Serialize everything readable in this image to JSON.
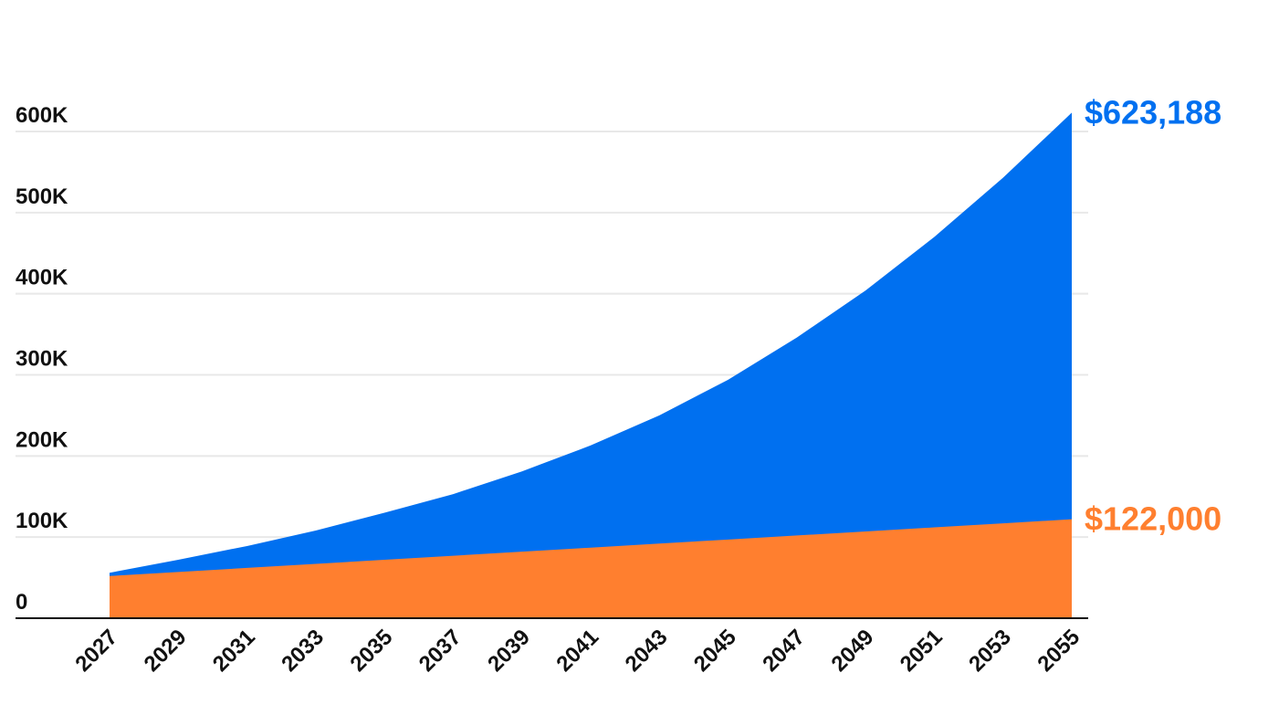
{
  "chart_data": {
    "type": "area",
    "x": [
      2027,
      2029,
      2031,
      2033,
      2035,
      2037,
      2039,
      2041,
      2043,
      2045,
      2047,
      2049,
      2051,
      2053,
      2055
    ],
    "xlim": [
      2027,
      2055
    ],
    "series": [
      {
        "color": "#0070f0",
        "values": [
          56000,
          72000,
          89000,
          108000,
          130000,
          153000,
          181000,
          213000,
          250000,
          294000,
          346000,
          404000,
          470000,
          543000,
          623188
        ],
        "value_labels": [
          null,
          null,
          null,
          null,
          null,
          null,
          null,
          null,
          null,
          null,
          null,
          null,
          null,
          null,
          "$623,188"
        ]
      },
      {
        "color": "#ff7f2f",
        "values": [
          52000,
          57000,
          62000,
          67000,
          72000,
          77000,
          82000,
          87000,
          92000,
          97000,
          102000,
          107000,
          112000,
          117000,
          122000
        ],
        "value_labels": [
          null,
          null,
          null,
          null,
          null,
          null,
          null,
          null,
          null,
          null,
          null,
          null,
          null,
          null,
          "$122,000"
        ]
      }
    ],
    "ylim": [
      0,
      600000
    ],
    "yticks": [
      0,
      {
        "value": 100000,
        "label": "100K"
      },
      {
        "value": 200000,
        "label": "200K"
      },
      {
        "value": 300000,
        "label": "300K"
      },
      {
        "value": 400000,
        "label": "400K"
      },
      {
        "value": 500000,
        "label": "500K"
      },
      {
        "value": 600000,
        "label": "600K"
      }
    ],
    "grid": true
  }
}
